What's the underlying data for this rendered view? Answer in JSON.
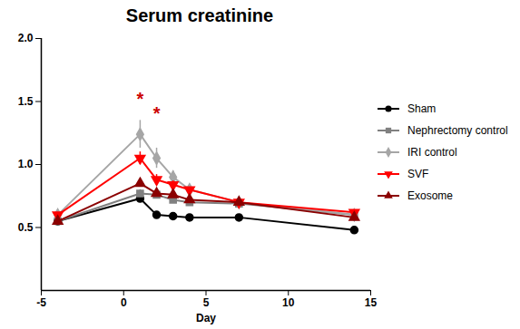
{
  "chart_data": {
    "type": "line",
    "title": "Serum creatinine",
    "x_label": "Day",
    "x": [
      -4,
      1,
      2,
      3,
      4,
      7,
      14
    ],
    "series": [
      {
        "name": "Sham",
        "color": "#000000",
        "marker": "circle",
        "values": [
          0.55,
          0.73,
          0.6,
          0.59,
          0.58,
          0.58,
          0.48
        ],
        "errors": [
          0.02,
          0.02,
          0.01,
          0.01,
          0.01,
          0.01,
          0.01
        ]
      },
      {
        "name": "Nephrectomy control",
        "color": "#808080",
        "marker": "square",
        "values": [
          0.55,
          0.77,
          0.76,
          0.72,
          0.7,
          0.69,
          0.6
        ],
        "errors": [
          0.02,
          0.03,
          0.02,
          0.02,
          0.02,
          0.02,
          0.02
        ]
      },
      {
        "name": "IRI control",
        "color": "#a6a6a6",
        "marker": "diamond",
        "values": [
          0.6,
          1.24,
          1.05,
          0.9,
          0.8,
          0.7,
          0.6
        ],
        "errors": [
          0.02,
          0.11,
          0.08,
          0.05,
          0.03,
          0.02,
          0.02
        ]
      },
      {
        "name": "SVF",
        "color": "#ff0000",
        "marker": "triangle-down",
        "values": [
          0.6,
          1.05,
          0.88,
          0.84,
          0.8,
          0.7,
          0.62
        ],
        "errors": [
          0.02,
          0.05,
          0.04,
          0.03,
          0.02,
          0.02,
          0.02
        ]
      },
      {
        "name": "Exosome",
        "color": "#8b0000",
        "marker": "triangle",
        "values": [
          0.55,
          0.85,
          0.77,
          0.76,
          0.72,
          0.7,
          0.58
        ],
        "errors": [
          0.02,
          0.03,
          0.02,
          0.02,
          0.02,
          0.02,
          0.02
        ]
      }
    ],
    "annotations": [
      {
        "text": "*",
        "x": 1,
        "y": 1.52,
        "color": "#cc0000"
      },
      {
        "text": "*",
        "x": 2,
        "y": 1.4,
        "color": "#cc0000"
      }
    ],
    "xlim": [
      -5,
      15
    ],
    "xticks": [
      -5,
      0,
      5,
      10,
      15
    ],
    "ylim": [
      0,
      2
    ],
    "yticks": [
      0.5,
      {
        "value": 1,
        "label": "1.0"
      },
      1.5,
      {
        "value": 2,
        "label": "2.0"
      }
    ],
    "legend": "right",
    "grid": false
  }
}
